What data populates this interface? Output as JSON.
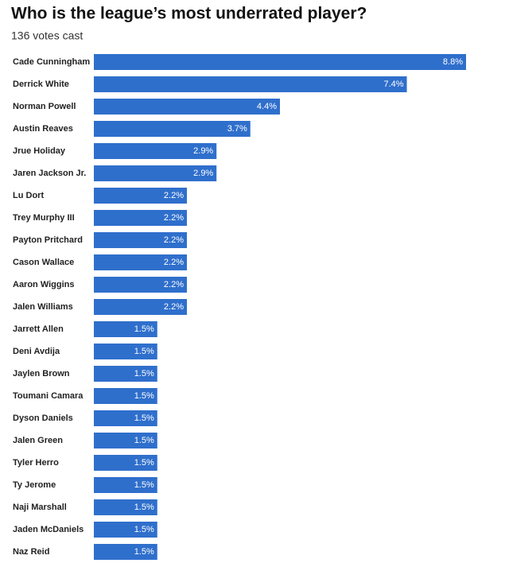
{
  "chart_data": {
    "type": "bar",
    "orientation": "horizontal",
    "title": "Who is the league’s most underrated player?",
    "subtitle": "136 votes cast",
    "color": "#2f6fcc",
    "categories": [
      "Cade Cunningham",
      "Derrick White",
      "Norman Powell",
      "Austin Reaves",
      "Jrue Holiday",
      "Jaren Jackson Jr.",
      "Lu Dort",
      "Trey Murphy III",
      "Payton Pritchard",
      "Cason Wallace",
      "Aaron Wiggins",
      "Jalen Williams",
      "Jarrett Allen",
      "Deni Avdija",
      "Jaylen Brown",
      "Toumani Camara",
      "Dyson Daniels",
      "Jalen Green",
      "Tyler Herro",
      "Ty Jerome",
      "Naji Marshall",
      "Jaden McDaniels",
      "Naz Reid"
    ],
    "values": [
      8.8,
      7.4,
      4.4,
      3.7,
      2.9,
      2.9,
      2.2,
      2.2,
      2.2,
      2.2,
      2.2,
      2.2,
      1.5,
      1.5,
      1.5,
      1.5,
      1.5,
      1.5,
      1.5,
      1.5,
      1.5,
      1.5,
      1.5
    ],
    "value_labels": [
      "8.8%",
      "7.4%",
      "4.4%",
      "3.7%",
      "2.9%",
      "2.9%",
      "2.2%",
      "2.2%",
      "2.2%",
      "2.2%",
      "2.2%",
      "2.2%",
      "1.5%",
      "1.5%",
      "1.5%",
      "1.5%",
      "1.5%",
      "1.5%",
      "1.5%",
      "1.5%",
      "1.5%",
      "1.5%",
      "1.5%"
    ]
  }
}
